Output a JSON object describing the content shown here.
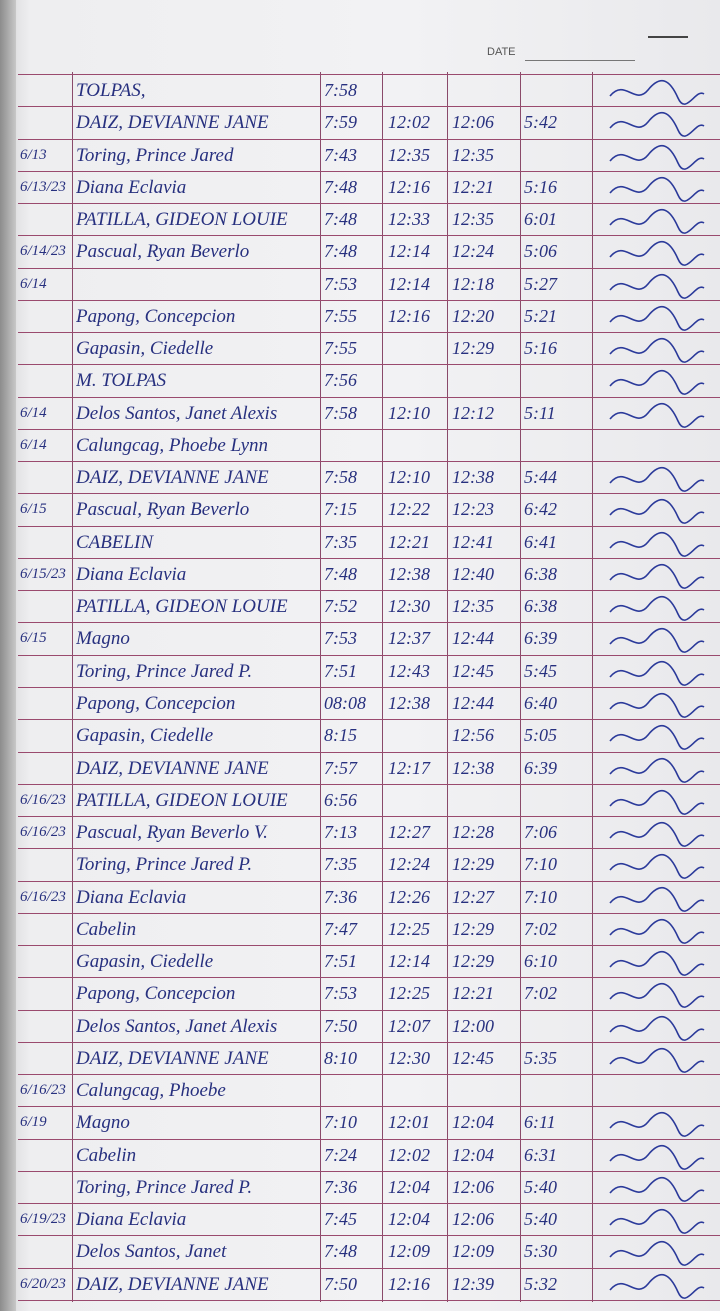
{
  "header": {
    "date_label": "DATE"
  },
  "rows": [
    {
      "name": "TOLPAS,",
      "times": [
        "7:58",
        null,
        null,
        null
      ]
    },
    {
      "name": "DAIZ, DEVIANNE JANE",
      "times": [
        "7:59",
        "12:02",
        "12:06",
        "5:42"
      ]
    },
    {
      "date": "6/13",
      "name": "Toring, Prince Jared",
      "times": [
        "7:43",
        "12:35",
        "12:35",
        null
      ]
    },
    {
      "date": "6/13/23",
      "name": "Diana Eclavia",
      "times": [
        "7:48",
        "12:16",
        "12:21",
        "5:16"
      ]
    },
    {
      "name": "PATILLA, GIDEON LOUIE",
      "times": [
        "7:48",
        "12:33",
        "12:35",
        "6:01"
      ]
    },
    {
      "date": "6/14/23",
      "name": "Pascual, Ryan Beverlo",
      "times": [
        "7:48",
        "12:14",
        "12:24",
        "5:06"
      ]
    },
    {
      "date": "6/14",
      "times": [
        "7:53",
        "12:14",
        "12:18",
        "5:27"
      ]
    },
    {
      "name": "Papong, Concepcion",
      "times": [
        "7:55",
        "12:16",
        "12:20",
        "5:21"
      ]
    },
    {
      "name": "Gapasin, Ciedelle",
      "times": [
        "7:55",
        null,
        "12:29",
        "5:16"
      ]
    },
    {
      "name": "M. TOLPAS",
      "times": [
        "7:56",
        null,
        null,
        null
      ]
    },
    {
      "date": "6/14",
      "name": "Delos Santos, Janet Alexis",
      "times": [
        "7:58",
        "12:10",
        "12:12",
        "5:11"
      ]
    },
    {
      "date": "6/14",
      "name": "Calungcag, Phoebe Lynn",
      "times": [
        null,
        null,
        null,
        null
      ]
    },
    {
      "name": "DAIZ, DEVIANNE JANE",
      "times": [
        "7:58",
        "12:10",
        "12:38",
        "5:44"
      ]
    },
    {
      "date": "6/15",
      "name": "Pascual, Ryan Beverlo",
      "times": [
        "7:15",
        "12:22",
        "12:23",
        "6:42"
      ]
    },
    {
      "name": "CABELIN",
      "times": [
        "7:35",
        "12:21",
        "12:41",
        "6:41"
      ]
    },
    {
      "date": "6/15/23",
      "name": "Diana Eclavia",
      "times": [
        "7:48",
        "12:38",
        "12:40",
        "6:38"
      ]
    },
    {
      "name": "PATILLA, GIDEON LOUIE",
      "times": [
        "7:52",
        "12:30",
        "12:35",
        "6:38"
      ]
    },
    {
      "date": "6/15",
      "name": "Magno",
      "times": [
        "7:53",
        "12:37",
        "12:44",
        "6:39"
      ]
    },
    {
      "name": "Toring, Prince Jared P.",
      "times": [
        "7:51",
        "12:43",
        "12:45",
        "5:45"
      ]
    },
    {
      "name": "Papong, Concepcion",
      "times": [
        "08:08",
        "12:38",
        "12:44",
        "6:40"
      ]
    },
    {
      "name": "Gapasin, Ciedelle",
      "times": [
        "8:15",
        null,
        "12:56",
        "5:05"
      ]
    },
    {
      "name": "DAIZ, DEVIANNE JANE",
      "times": [
        "7:57",
        "12:17",
        "12:38",
        "6:39"
      ]
    },
    {
      "date": "6/16/23",
      "name": "PATILLA, GIDEON LOUIE",
      "times": [
        "6:56",
        null,
        null,
        null
      ]
    },
    {
      "date": "6/16/23",
      "name": "Pascual, Ryan Beverlo V.",
      "times": [
        "7:13",
        "12:27",
        "12:28",
        "7:06"
      ]
    },
    {
      "name": "Toring, Prince Jared P.",
      "times": [
        "7:35",
        "12:24",
        "12:29",
        "7:10"
      ]
    },
    {
      "date": "6/16/23",
      "name": "Diana Eclavia",
      "times": [
        "7:36",
        "12:26",
        "12:27",
        "7:10"
      ]
    },
    {
      "name": "Cabelin",
      "times": [
        "7:47",
        "12:25",
        "12:29",
        "7:02"
      ]
    },
    {
      "name": "Gapasin, Ciedelle",
      "times": [
        "7:51",
        "12:14",
        "12:29",
        "6:10"
      ]
    },
    {
      "name": "Papong, Concepcion",
      "times": [
        "7:53",
        "12:25",
        "12:21",
        "7:02"
      ]
    },
    {
      "name": "Delos Santos, Janet Alexis",
      "times": [
        "7:50",
        "12:07",
        "12:00",
        null
      ]
    },
    {
      "name": "DAIZ, DEVIANNE JANE",
      "times": [
        "8:10",
        "12:30",
        "12:45",
        "5:35"
      ]
    },
    {
      "date": "6/16/23",
      "name": "Calungcag, Phoebe",
      "times": [
        null,
        null,
        null,
        null
      ]
    },
    {
      "date": "6/19",
      "name": "Magno",
      "times": [
        "7:10",
        "12:01",
        "12:04",
        "6:11"
      ]
    },
    {
      "name": "Cabelin",
      "times": [
        "7:24",
        "12:02",
        "12:04",
        "6:31"
      ]
    },
    {
      "name": "Toring, Prince Jared P.",
      "times": [
        "7:36",
        "12:04",
        "12:06",
        "5:40"
      ]
    },
    {
      "date": "6/19/23",
      "name": "Diana Eclavia",
      "times": [
        "7:45",
        "12:04",
        "12:06",
        "5:40"
      ]
    },
    {
      "name": "Delos Santos, Janet",
      "times": [
        "7:48",
        "12:09",
        "12:09",
        "5:30"
      ]
    },
    {
      "date": "6/20/23",
      "name": "DAIZ, DEVIANNE JANE",
      "times": [
        "7:50",
        "12:16",
        "12:39",
        "5:32"
      ]
    }
  ]
}
